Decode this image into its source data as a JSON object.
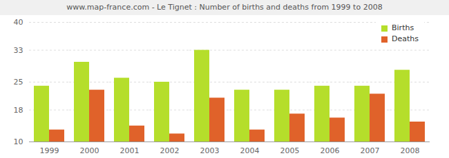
{
  "chart_data": {
    "type": "bar",
    "title": "www.map-france.com - Le Tignet : Number of births and deaths from 1999 to 2008",
    "categories": [
      "1999",
      "2000",
      "2001",
      "2002",
      "2003",
      "2004",
      "2005",
      "2006",
      "2007",
      "2008"
    ],
    "series": [
      {
        "name": "Births",
        "color": "#b5de2b",
        "values": [
          24,
          30,
          26,
          25,
          33,
          23,
          23,
          24,
          24,
          28
        ]
      },
      {
        "name": "Deaths",
        "color": "#e0622a",
        "values": [
          13,
          23,
          14,
          12,
          21,
          13,
          17,
          16,
          22,
          15
        ]
      }
    ],
    "ylim": [
      10,
      40
    ],
    "yticks": [
      10,
      18,
      25,
      33,
      40
    ],
    "grid": true,
    "legend": "upper right"
  }
}
